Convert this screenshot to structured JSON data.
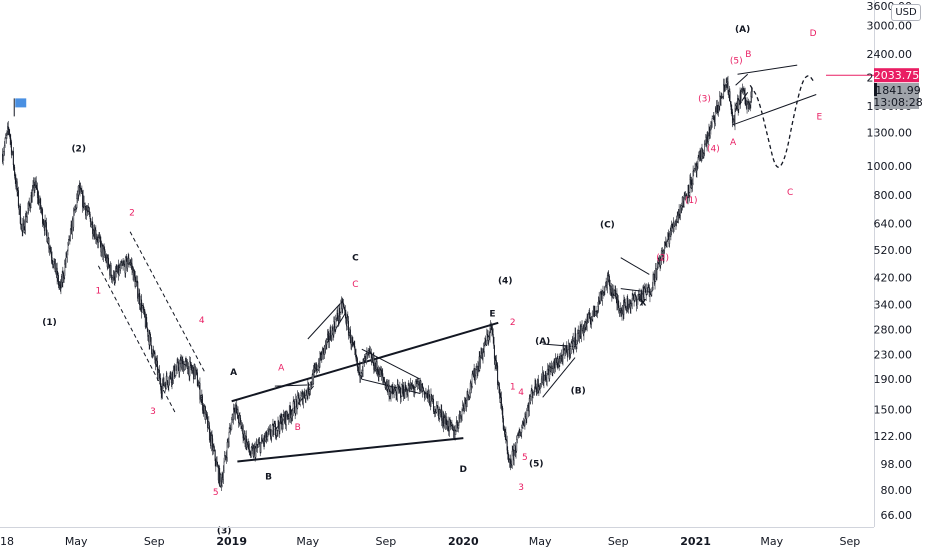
{
  "currency": "USD",
  "chart_data": {
    "type": "candlestick",
    "scale": "log",
    "ylim": [
      60,
      3600
    ],
    "y_ticks": [
      "3000.00",
      "2400.00",
      "2000.00",
      "1600.00",
      "1300.00",
      "1000.00",
      "800.00",
      "640.00",
      "520.00",
      "420.00",
      "340.00",
      "280.00",
      "230.00",
      "190.00",
      "150.00",
      "122.00",
      "98.00",
      "80.00",
      "66.00"
    ],
    "y_top_partial": "3600.00",
    "x_ticks": [
      "2018",
      "May",
      "Sep",
      "2019",
      "May",
      "Sep",
      "2020",
      "May",
      "Sep",
      "2021",
      "May",
      "Sep"
    ],
    "x_tick_bold": [
      "2019",
      "2020",
      "2021"
    ],
    "x_start": "2018-01-01",
    "x_end": "2021-10-09",
    "price_path": [
      [
        "2018-01-05",
        1100
      ],
      [
        "2018-01-15",
        1350
      ],
      [
        "2018-02-05",
        600
      ],
      [
        "2018-02-25",
        870
      ],
      [
        "2018-04-06",
        380
      ],
      [
        "2018-05-05",
        830
      ],
      [
        "2018-06-28",
        420
      ],
      [
        "2018-07-25",
        480
      ],
      [
        "2018-09-12",
        180
      ],
      [
        "2018-10-15",
        215
      ],
      [
        "2018-11-05",
        200
      ],
      [
        "2018-12-15",
        84
      ],
      [
        "2019-01-05",
        155
      ],
      [
        "2019-01-31",
        105
      ],
      [
        "2019-04-01",
        145
      ],
      [
        "2019-05-01",
        175
      ],
      [
        "2019-06-25",
        340
      ],
      [
        "2019-07-20",
        200
      ],
      [
        "2019-08-05",
        230
      ],
      [
        "2019-09-10",
        170
      ],
      [
        "2019-10-25",
        180
      ],
      [
        "2019-12-17",
        125
      ],
      [
        "2020-02-14",
        285
      ],
      [
        "2020-03-13",
        95
      ],
      [
        "2020-04-20",
        175
      ],
      [
        "2020-06-15",
        240
      ],
      [
        "2020-07-25",
        320
      ],
      [
        "2020-08-15",
        410
      ],
      [
        "2020-09-05",
        330
      ],
      [
        "2020-10-20",
        380
      ],
      [
        "2020-11-20",
        580
      ],
      [
        "2021-01-04",
        1000
      ],
      [
        "2021-02-20",
        1960
      ],
      [
        "2021-02-28",
        1400
      ],
      [
        "2021-03-15",
        1800
      ],
      [
        "2021-03-24",
        1600
      ],
      [
        "2021-03-31",
        1842
      ]
    ],
    "current_price": {
      "label": "1841.99",
      "countdown": "13:08:28",
      "color": "#a0a4ab"
    },
    "alert_price": {
      "label": "2033.75",
      "value": 2033.75,
      "color": "#e91e63"
    },
    "lines": [
      {
        "style": "solid",
        "weight": 2,
        "color": "#131722",
        "from": [
          "2019-01-01",
          160
        ],
        "to": [
          "2020-02-25",
          295
        ]
      },
      {
        "style": "solid",
        "weight": 2,
        "color": "#131722",
        "from": [
          "2019-01-10",
          100
        ],
        "to": [
          "2020-01-01",
          120
        ]
      },
      {
        "style": "dashed",
        "weight": 1,
        "color": "#131722",
        "from": [
          "2018-07-25",
          600
        ],
        "to": [
          "2018-11-20",
          200
        ]
      },
      {
        "style": "dashed",
        "weight": 1,
        "color": "#131722",
        "from": [
          "2018-06-05",
          460
        ],
        "to": [
          "2018-10-05",
          145
        ]
      },
      {
        "style": "solid",
        "weight": 1,
        "color": "#131722",
        "from": [
          "2019-05-01",
          260
        ],
        "to": [
          "2019-06-25",
          350
        ]
      },
      {
        "style": "solid",
        "weight": 1,
        "color": "#131722",
        "from": [
          "2019-05-20",
          230
        ],
        "to": [
          "2019-06-30",
          320
        ]
      },
      {
        "style": "solid",
        "weight": 1,
        "color": "#131722",
        "from": [
          "2019-03-10",
          128
        ],
        "to": [
          "2019-05-10",
          180
        ]
      },
      {
        "style": "solid",
        "weight": 1,
        "color": "#131722",
        "from": [
          "2019-03-10",
          180
        ],
        "to": [
          "2019-05-10",
          182
        ]
      },
      {
        "style": "solid",
        "weight": 1,
        "color": "#131722",
        "from": [
          "2019-07-25",
          240
        ],
        "to": [
          "2019-10-25",
          190
        ]
      },
      {
        "style": "solid",
        "weight": 1,
        "color": "#131722",
        "from": [
          "2019-07-25",
          190
        ],
        "to": [
          "2019-10-25",
          170
        ]
      },
      {
        "style": "solid",
        "weight": 1,
        "color": "#131722",
        "from": [
          "2020-05-05",
          165
        ],
        "to": [
          "2020-06-25",
          225
        ]
      },
      {
        "style": "solid",
        "weight": 1,
        "color": "#131722",
        "from": [
          "2020-05-05",
          250
        ],
        "to": [
          "2020-06-25",
          245
        ]
      },
      {
        "style": "solid",
        "weight": 1,
        "color": "#131722",
        "from": [
          "2020-09-05",
          490
        ],
        "to": [
          "2020-10-20",
          430
        ]
      },
      {
        "style": "solid",
        "weight": 1,
        "color": "#131722",
        "from": [
          "2020-09-05",
          385
        ],
        "to": [
          "2020-10-20",
          375
        ]
      },
      {
        "style": "solid",
        "weight": 1,
        "color": "#131722",
        "from": [
          "2021-03-08",
          2050
        ],
        "to": [
          "2021-06-10",
          2200
        ]
      },
      {
        "style": "solid",
        "weight": 1,
        "color": "#131722",
        "from": [
          "2021-02-28",
          1380
        ],
        "to": [
          "2021-07-10",
          1750
        ]
      },
      {
        "style": "solid",
        "weight": 1,
        "color": "#131722",
        "from": [
          "2021-03-05",
          1880
        ],
        "to": [
          "2021-03-24",
          2050
        ]
      },
      {
        "style": "solid",
        "weight": 1,
        "color": "#131722",
        "from": [
          "2021-03-05",
          1550
        ],
        "to": [
          "2021-03-24",
          1780
        ]
      }
    ],
    "projection_path": [
      [
        "2021-03-28",
        1880
      ],
      [
        "2021-04-10",
        1700
      ],
      [
        "2021-04-25",
        1250
      ],
      [
        "2021-05-08",
        960
      ],
      [
        "2021-05-22",
        1050
      ],
      [
        "2021-06-05",
        1500
      ],
      [
        "2021-06-18",
        1950
      ],
      [
        "2021-06-28",
        2050
      ],
      [
        "2021-07-05",
        1950
      ]
    ],
    "annotations": [
      {
        "text": "(2)",
        "color": "black",
        "at": [
          "2018-05-05",
          1120
        ]
      },
      {
        "text": "(1)",
        "color": "black",
        "at": [
          "2018-03-20",
          290
        ]
      },
      {
        "text": "2",
        "color": "red",
        "at": [
          "2018-07-28",
          680
        ]
      },
      {
        "text": "1",
        "color": "red",
        "at": [
          "2018-06-05",
          370
        ]
      },
      {
        "text": "3",
        "color": "red",
        "at": [
          "2018-08-30",
          145
        ]
      },
      {
        "text": "4",
        "color": "red",
        "at": [
          "2018-11-15",
          295
        ]
      },
      {
        "text": "5",
        "color": "red",
        "at": [
          "2018-12-07",
          77
        ]
      },
      {
        "text": "(3)",
        "color": "black",
        "at": [
          "2018-12-20",
          57
        ]
      },
      {
        "text": "A",
        "color": "black",
        "at": [
          "2019-01-04",
          196
        ]
      },
      {
        "text": "B",
        "color": "black",
        "at": [
          "2019-02-28",
          87
        ]
      },
      {
        "text": "A",
        "color": "red",
        "at": [
          "2019-03-20",
          203
        ]
      },
      {
        "text": "B",
        "color": "red",
        "at": [
          "2019-04-15",
          128
        ]
      },
      {
        "text": "C",
        "color": "black",
        "at": [
          "2019-07-15",
          480
        ]
      },
      {
        "text": "C",
        "color": "red",
        "at": [
          "2019-07-15",
          390
        ]
      },
      {
        "text": "D",
        "color": "black",
        "at": [
          "2020-01-01",
          92
        ]
      },
      {
        "text": "(4)",
        "color": "black",
        "at": [
          "2020-03-07",
          400
        ]
      },
      {
        "text": "E",
        "color": "black",
        "at": [
          "2020-02-16",
          310
        ]
      },
      {
        "text": "2",
        "color": "red",
        "at": [
          "2020-03-19",
          290
        ]
      },
      {
        "text": "1",
        "color": "red",
        "at": [
          "2020-03-19",
          175
        ]
      },
      {
        "text": "4",
        "color": "red",
        "at": [
          "2020-04-01",
          168
        ]
      },
      {
        "text": "5",
        "color": "red",
        "at": [
          "2020-04-07",
          101
        ]
      },
      {
        "text": "3",
        "color": "red",
        "at": [
          "2020-04-01",
          80
        ]
      },
      {
        "text": "(5)",
        "color": "black",
        "at": [
          "2020-04-25",
          96
        ]
      },
      {
        "text": "(A)",
        "color": "black",
        "at": [
          "2020-05-05",
          250
        ]
      },
      {
        "text": "(B)",
        "color": "black",
        "at": [
          "2020-06-30",
          170
        ]
      },
      {
        "text": "(C)",
        "color": "black",
        "at": [
          "2020-08-15",
          620
        ]
      },
      {
        "text": "X",
        "color": "black",
        "at": [
          "2020-10-10",
          338
        ]
      },
      {
        "text": "(2)",
        "color": "red",
        "at": [
          "2020-11-10",
          480
        ]
      },
      {
        "text": "(1)",
        "color": "red",
        "at": [
          "2020-12-25",
          750
        ]
      },
      {
        "text": "(4)",
        "color": "red",
        "at": [
          "2021-01-29",
          1120
        ]
      },
      {
        "text": "(3)",
        "color": "red",
        "at": [
          "2021-01-15",
          1660
        ]
      },
      {
        "text": "A",
        "color": "red",
        "at": [
          "2021-03-01",
          1180
        ]
      },
      {
        "text": "(5)",
        "color": "red",
        "at": [
          "2021-03-06",
          2230
        ]
      },
      {
        "text": "(A)",
        "color": "black",
        "at": [
          "2021-03-16",
          2850
        ]
      },
      {
        "text": "B",
        "color": "red",
        "at": [
          "2021-03-25",
          2340
        ]
      },
      {
        "text": "D",
        "color": "red",
        "at": [
          "2021-07-05",
          2760
        ]
      },
      {
        "text": "E",
        "color": "red",
        "at": [
          "2021-07-15",
          1440
        ]
      },
      {
        "text": "C",
        "color": "red",
        "at": [
          "2021-05-30",
          800
        ]
      }
    ],
    "flag": {
      "color": "#4a90e2",
      "at": [
        "2018-01-25",
        1620
      ]
    },
    "colors": {
      "candle": "#131722",
      "grid_axis": "#d1d4dc",
      "bullish": "#131722",
      "bearish": "#131722"
    }
  }
}
